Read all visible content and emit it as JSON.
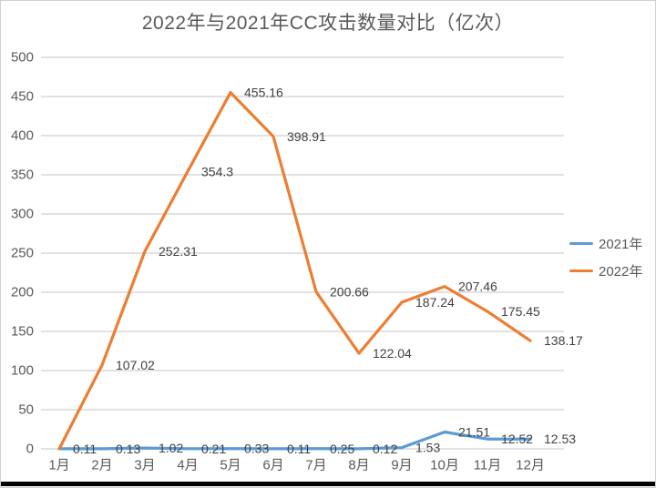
{
  "chart_data": {
    "type": "line",
    "title": "2022年与2021年CC攻击数量对比（亿次）",
    "unit": "亿次",
    "categories": [
      "1月",
      "2月",
      "3月",
      "4月",
      "5月",
      "6月",
      "7月",
      "8月",
      "9月",
      "10月",
      "11月",
      "12月"
    ],
    "series": [
      {
        "name": "2021年",
        "color": "#5B9BD5",
        "values": [
          0.11,
          0.13,
          1.02,
          0.21,
          0.33,
          0.11,
          0.25,
          0.12,
          1.53,
          21.51,
          12.52,
          12.53
        ],
        "labels": [
          "0.11",
          "0.13",
          "1.02",
          "0.21",
          "0.33",
          "0.11",
          "0.25",
          "0.12",
          "1.53",
          "21.51",
          "12.52",
          "12.53"
        ]
      },
      {
        "name": "2022年",
        "color": "#ED7D31",
        "values": [
          0,
          107.02,
          252.31,
          354.3,
          455.16,
          398.91,
          200.66,
          122.04,
          187.24,
          207.46,
          175.45,
          138.17
        ],
        "labels": [
          "",
          "107.02",
          "252.31",
          "354.3",
          "455.16",
          "398.91",
          "200.66",
          "122.04",
          "187.24",
          "207.46",
          "175.45",
          "138.17"
        ]
      }
    ],
    "y_axis": {
      "min": 0,
      "max": 500,
      "step": 50,
      "tick_labels": [
        "0",
        "50",
        "100",
        "150",
        "200",
        "250",
        "300",
        "350",
        "400",
        "450",
        "500"
      ]
    },
    "grid": true,
    "legend_position": "right-middle",
    "colors": {
      "gridline": "#D9D9D9",
      "axis_text": "#595959",
      "data_label_text": "#404040",
      "title_text": "#595959",
      "bottom_edge": "#000000"
    }
  }
}
